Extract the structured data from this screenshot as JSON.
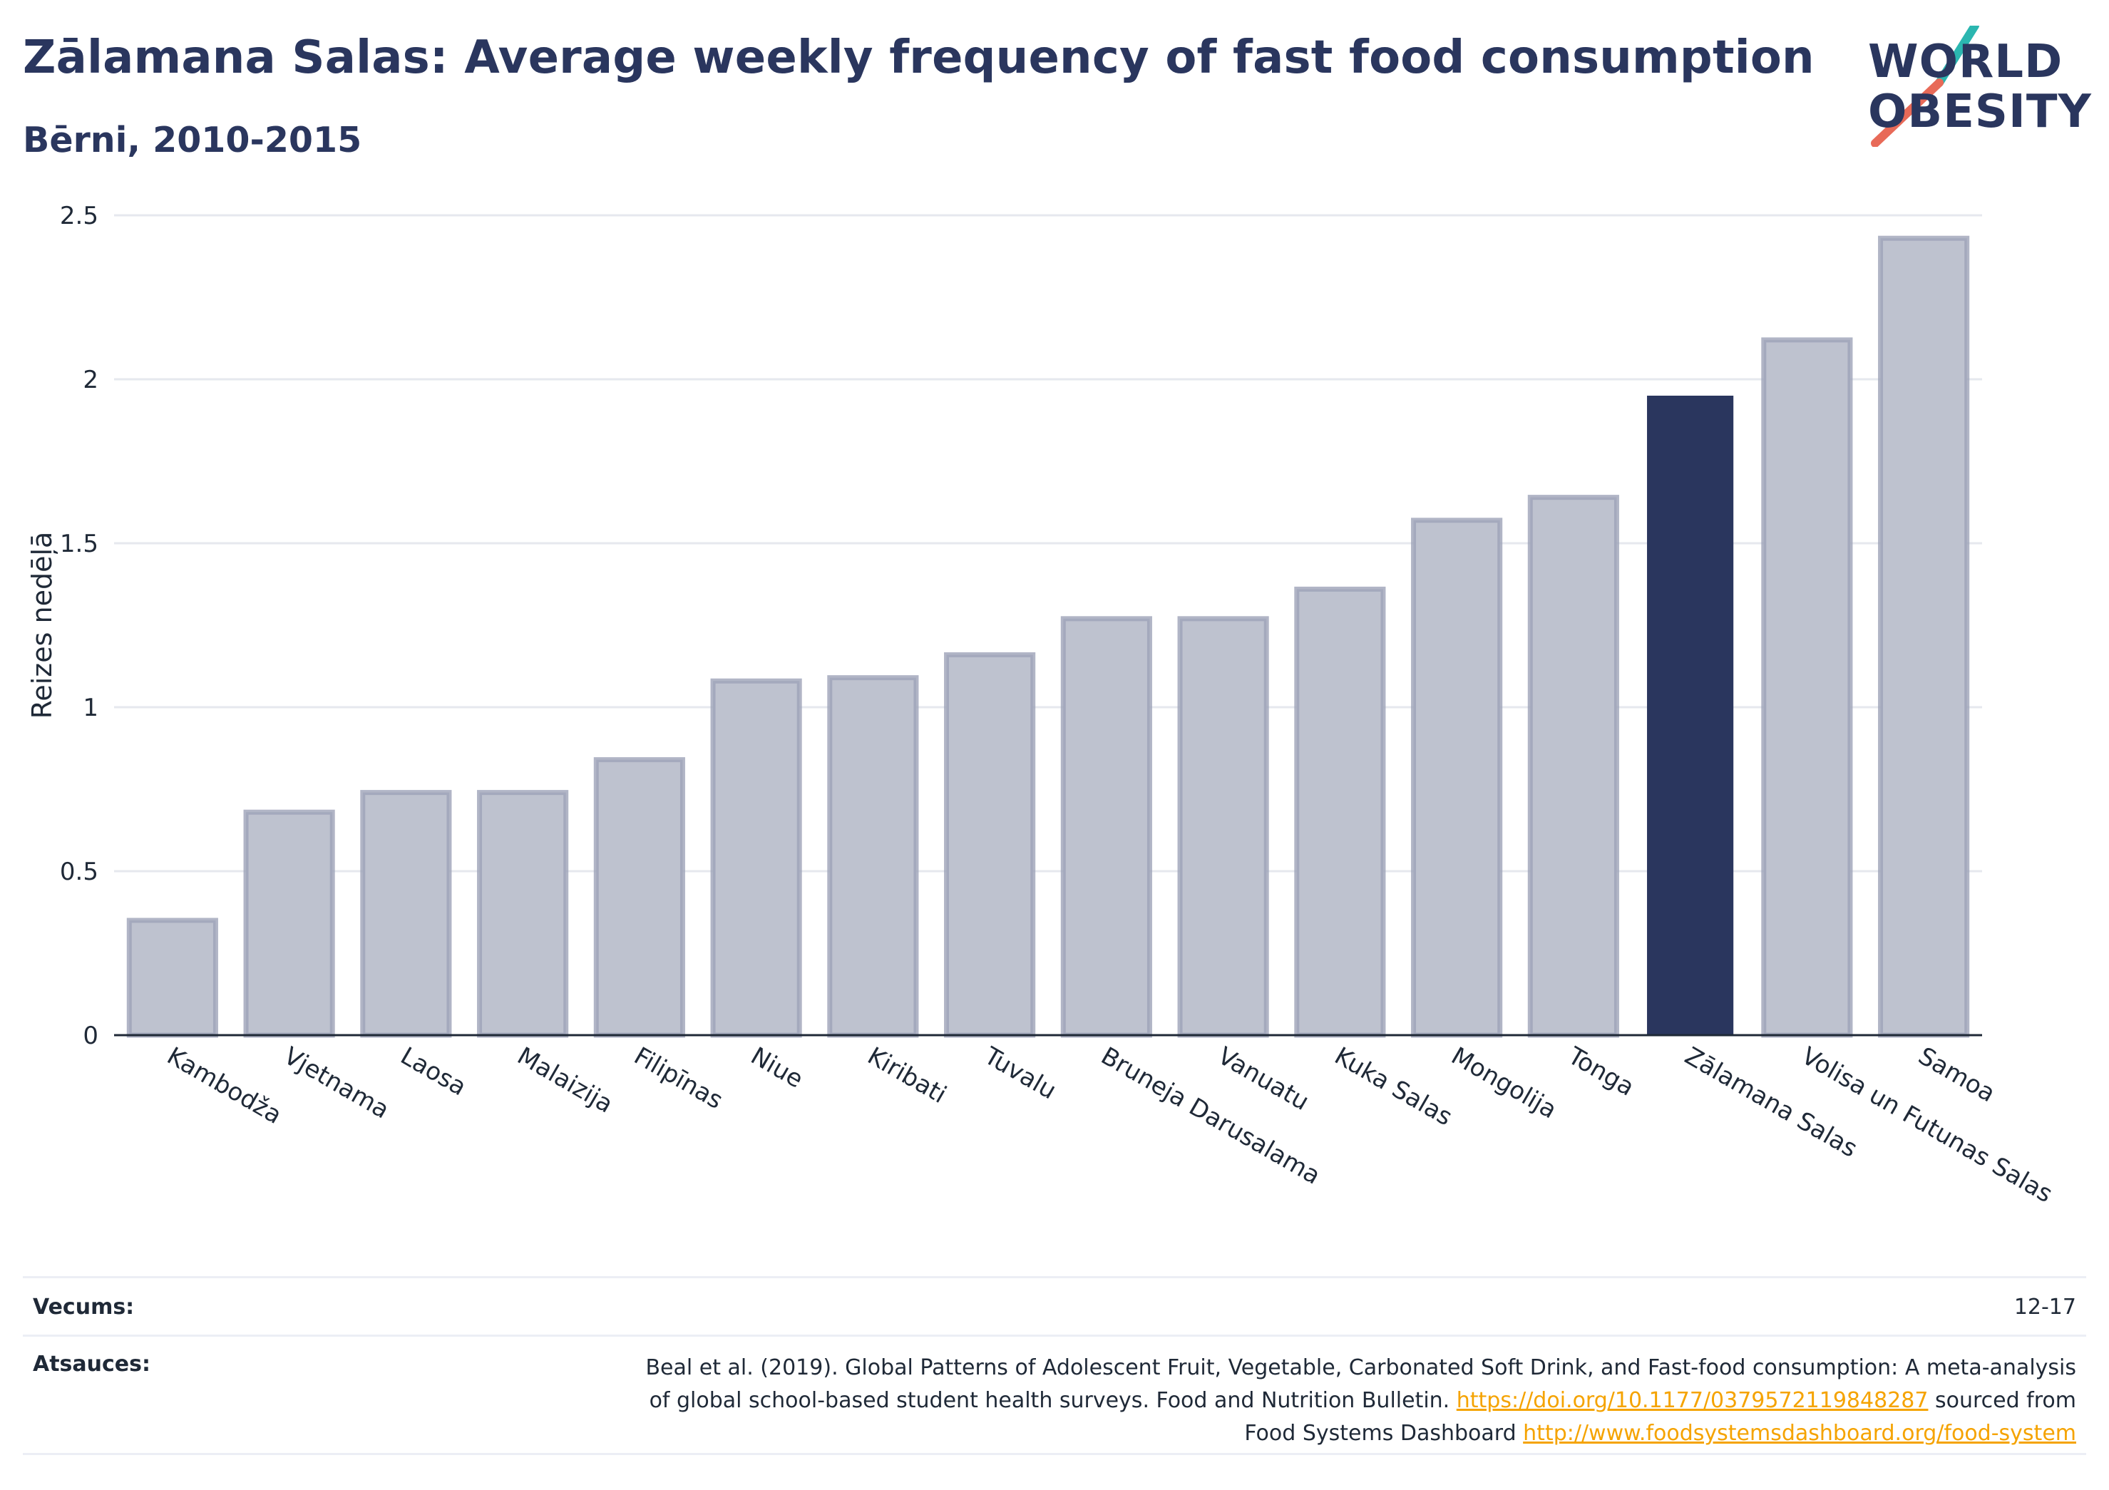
{
  "header": {
    "title": "Zālamana Salas: Average weekly frequency of fast food consumption",
    "subtitle": "Bērni, 2010-2015"
  },
  "logo": {
    "line1": "WORLD",
    "line2": "OBESITY",
    "accent_teal": "#2bb6b0",
    "accent_coral": "#e86a58"
  },
  "colors": {
    "primary": "#2a365e",
    "highlight_bar": "#2a365e",
    "bar_fill": "#bec2cf",
    "bar_stroke": "#9da3b8",
    "link": "#f5a300"
  },
  "chart_data": {
    "type": "bar",
    "ylabel": "Reizes nedēļā",
    "xlabel": "",
    "ylim": [
      0,
      2.5
    ],
    "yticks": [
      0,
      0.5,
      1,
      1.5,
      2,
      2.5
    ],
    "ytick_labels": [
      "0",
      "0.5",
      "1",
      "1.5",
      "2",
      "2.5"
    ],
    "grid": true,
    "highlight": "Zālamana Salas",
    "categories": [
      "Kambodža",
      "Vjetnama",
      "Laosa",
      "Malaizija",
      "Filipīnas",
      "Niue",
      "Kiribati",
      "Tuvalu",
      "Bruneja Darusalama",
      "Vanuatu",
      "Kuka Salas",
      "Mongolija",
      "Tonga",
      "Zālamana Salas",
      "Volisa un Futunas Salas",
      "Samoa"
    ],
    "values": [
      0.35,
      0.68,
      0.74,
      0.74,
      0.84,
      1.08,
      1.09,
      1.16,
      1.27,
      1.27,
      1.36,
      1.57,
      1.64,
      1.95,
      2.12,
      2.43
    ]
  },
  "footer": {
    "age_label": "Vecums:",
    "age_value": "12-17",
    "sources_label": "Atsauces:",
    "sources_line1": "Beal et al. (2019). Global Patterns of Adolescent Fruit, Vegetable, Carbonated Soft Drink, and Fast-food consumption: A meta-analysis",
    "sources_line2_pre": "of global school-based student health surveys. Food and Nutrition Bulletin. ",
    "sources_link1": "https://doi.org/10.1177/0379572119848287",
    "sources_line2_post": " sourced from",
    "sources_line3_pre": "Food Systems Dashboard ",
    "sources_link2": "http://www.foodsystemsdashboard.org/food-system"
  }
}
